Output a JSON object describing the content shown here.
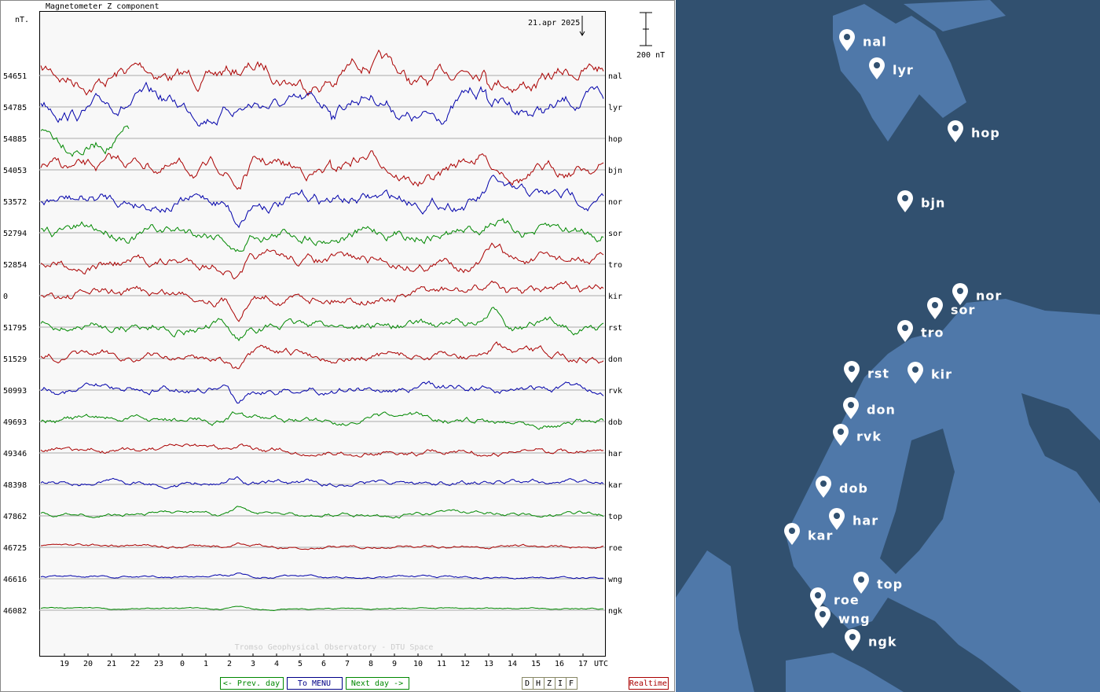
{
  "panel": {
    "title": "Magnetometer Z component",
    "unit": "nT.",
    "date": "21.apr 2025",
    "scale": "200 nT",
    "stations": [
      {
        "baseline": "54651",
        "name": "nal"
      },
      {
        "baseline": "54785",
        "name": "lyr"
      },
      {
        "baseline": "54885",
        "name": "hop"
      },
      {
        "baseline": "54053",
        "name": "bjn"
      },
      {
        "baseline": "53572",
        "name": "nor"
      },
      {
        "baseline": "52794",
        "name": "sor"
      },
      {
        "baseline": "52854",
        "name": "tro"
      },
      {
        "baseline": "0",
        "name": "kir"
      },
      {
        "baseline": "51795",
        "name": "rst"
      },
      {
        "baseline": "51529",
        "name": "don"
      },
      {
        "baseline": "50993",
        "name": "rvk"
      },
      {
        "baseline": "49693",
        "name": "dob"
      },
      {
        "baseline": "49346",
        "name": "har"
      },
      {
        "baseline": "48398",
        "name": "kar"
      },
      {
        "baseline": "47862",
        "name": "top"
      },
      {
        "baseline": "46725",
        "name": "roe"
      },
      {
        "baseline": "46616",
        "name": "wng"
      },
      {
        "baseline": "46082",
        "name": "ngk"
      }
    ],
    "hours": [
      "19",
      "20",
      "21",
      "22",
      "23",
      "0",
      "1",
      "2",
      "3",
      "4",
      "5",
      "6",
      "7",
      "8",
      "9",
      "10",
      "11",
      "12",
      "13",
      "14",
      "15",
      "16",
      "17"
    ],
    "time_unit": "UTC",
    "credit": "Tromso Geophysical Observatory - DTU Space",
    "buttons": {
      "prev": "<- Prev. day",
      "menu": "To MENU",
      "next": "Next day ->",
      "realtime": "Realtime"
    },
    "components": [
      "D",
      "H",
      "Z",
      "I",
      "F"
    ]
  },
  "map": {
    "markers": [
      {
        "label": "nal"
      },
      {
        "label": "lyr"
      },
      {
        "label": "hop"
      },
      {
        "label": "bjn"
      },
      {
        "label": "nor"
      },
      {
        "label": "sor"
      },
      {
        "label": "tro"
      },
      {
        "label": "rst"
      },
      {
        "label": "kir"
      },
      {
        "label": "don"
      },
      {
        "label": "rvk"
      },
      {
        "label": "dob"
      },
      {
        "label": "har"
      },
      {
        "label": "kar"
      },
      {
        "label": "top"
      },
      {
        "label": "roe"
      },
      {
        "label": "wng"
      },
      {
        "label": "ngk"
      }
    ]
  }
}
